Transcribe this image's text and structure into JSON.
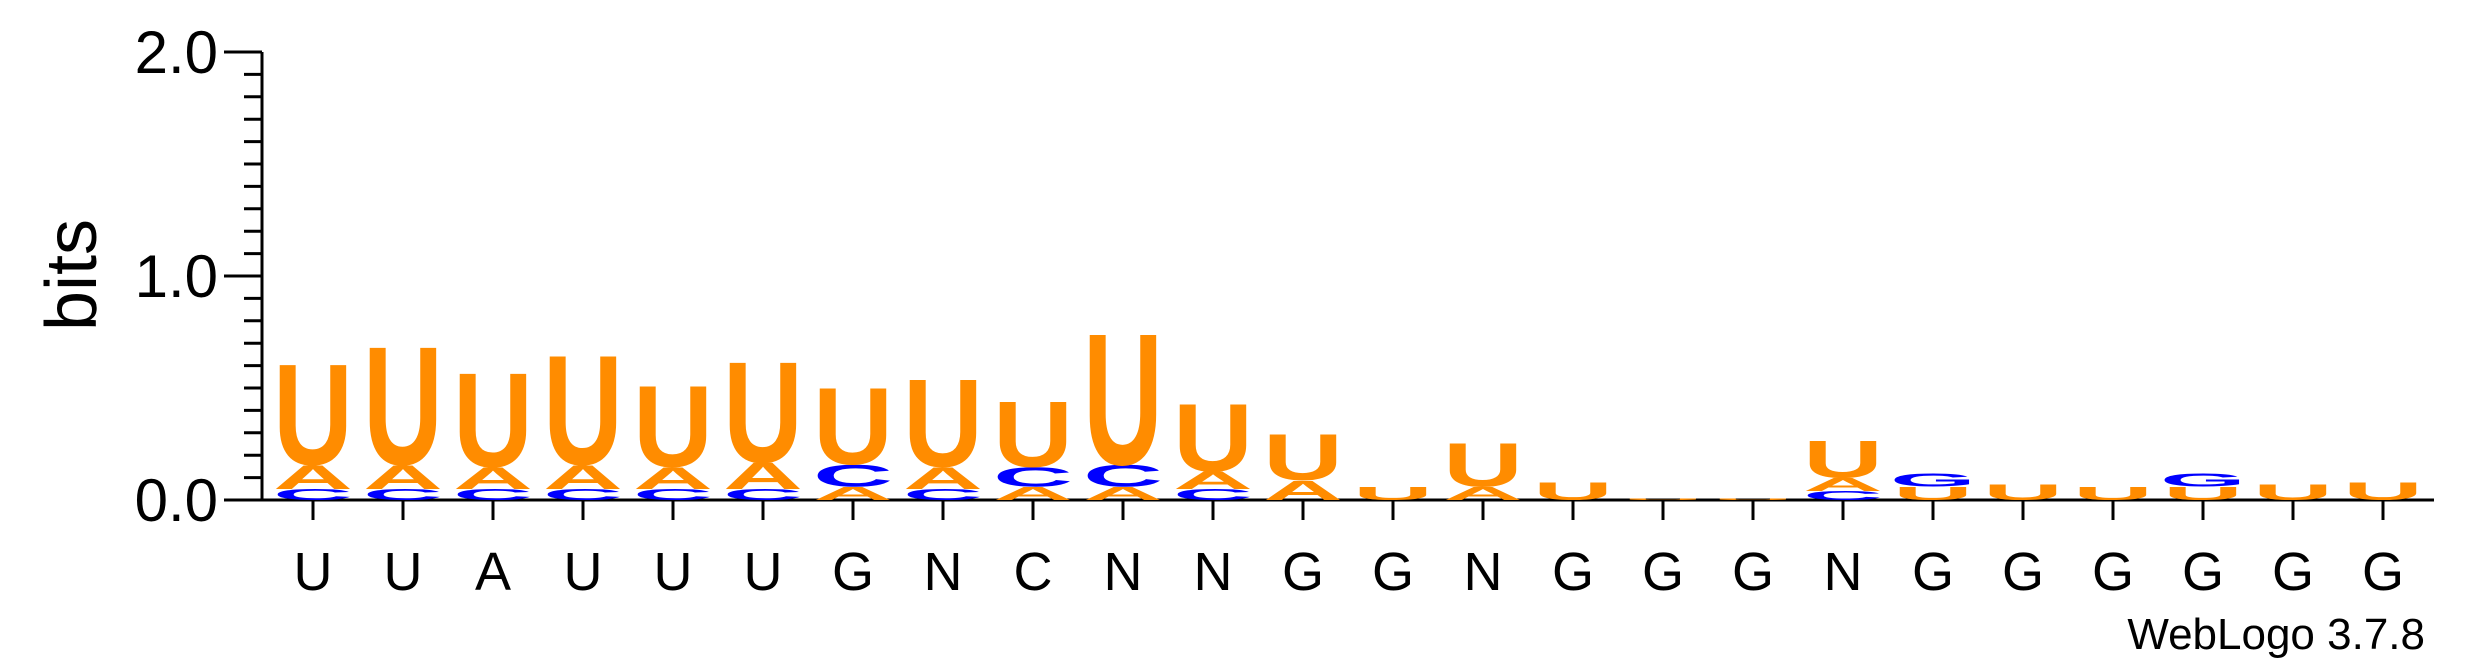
{
  "chart_data": {
    "type": "sequence-logo",
    "ylabel": "bits",
    "ylim": [
      0,
      2.0
    ],
    "yticks": [
      "0.0",
      "1.0",
      "2.0"
    ],
    "positions": [
      "U",
      "U",
      "A",
      "U",
      "U",
      "U",
      "G",
      "N",
      "C",
      "N",
      "N",
      "G",
      "G",
      "N",
      "G",
      "G",
      "G",
      "N",
      "G",
      "G",
      "G",
      "G",
      "G",
      "G"
    ],
    "colors": {
      "U": "#ff8c00",
      "A": "#ff8c00",
      "C": "#0000ff",
      "G": "#0000ff"
    },
    "columns": [
      [
        {
          "letter": "C",
          "bits": 0.05
        },
        {
          "letter": "A",
          "bits": 0.11
        },
        {
          "letter": "U",
          "bits": 0.46
        }
      ],
      [
        {
          "letter": "C",
          "bits": 0.05
        },
        {
          "letter": "A",
          "bits": 0.11
        },
        {
          "letter": "U",
          "bits": 0.54
        }
      ],
      [
        {
          "letter": "C",
          "bits": 0.05
        },
        {
          "letter": "A",
          "bits": 0.1
        },
        {
          "letter": "U",
          "bits": 0.43
        }
      ],
      [
        {
          "letter": "C",
          "bits": 0.05
        },
        {
          "letter": "A",
          "bits": 0.11
        },
        {
          "letter": "U",
          "bits": 0.5
        }
      ],
      [
        {
          "letter": "C",
          "bits": 0.05
        },
        {
          "letter": "A",
          "bits": 0.1
        },
        {
          "letter": "U",
          "bits": 0.37
        }
      ],
      [
        {
          "letter": "C",
          "bits": 0.05
        },
        {
          "letter": "A",
          "bits": 0.12
        },
        {
          "letter": "U",
          "bits": 0.46
        }
      ],
      [
        {
          "letter": "A",
          "bits": 0.06
        },
        {
          "letter": "C",
          "bits": 0.1
        },
        {
          "letter": "U",
          "bits": 0.35
        }
      ],
      [
        {
          "letter": "C",
          "bits": 0.05
        },
        {
          "letter": "A",
          "bits": 0.1
        },
        {
          "letter": "U",
          "bits": 0.4
        }
      ],
      [
        {
          "letter": "A",
          "bits": 0.06
        },
        {
          "letter": "C",
          "bits": 0.09
        },
        {
          "letter": "U",
          "bits": 0.3
        }
      ],
      [
        {
          "letter": "A",
          "bits": 0.06
        },
        {
          "letter": "C",
          "bits": 0.1
        },
        {
          "letter": "U",
          "bits": 0.6
        }
      ],
      [
        {
          "letter": "C",
          "bits": 0.05
        },
        {
          "letter": "A",
          "bits": 0.08
        },
        {
          "letter": "U",
          "bits": 0.31
        }
      ],
      [
        {
          "letter": "A",
          "bits": 0.09
        },
        {
          "letter": "U",
          "bits": 0.21
        }
      ],
      [
        {
          "letter": "U",
          "bits": 0.06
        }
      ],
      [
        {
          "letter": "A",
          "bits": 0.06
        },
        {
          "letter": "U",
          "bits": 0.2
        }
      ],
      [
        {
          "letter": "U",
          "bits": 0.08
        }
      ],
      [
        {
          "letter": "U",
          "bits": 0.005
        }
      ],
      [
        {
          "letter": "U",
          "bits": 0.005
        }
      ],
      [
        {
          "letter": "C",
          "bits": 0.04
        },
        {
          "letter": "A",
          "bits": 0.06
        },
        {
          "letter": "U",
          "bits": 0.17
        }
      ],
      [
        {
          "letter": "U",
          "bits": 0.06
        },
        {
          "letter": "G",
          "bits": 0.06
        }
      ],
      [
        {
          "letter": "U",
          "bits": 0.07
        }
      ],
      [
        {
          "letter": "U",
          "bits": 0.06
        }
      ],
      [
        {
          "letter": "U",
          "bits": 0.06
        },
        {
          "letter": "G",
          "bits": 0.06
        }
      ],
      [
        {
          "letter": "U",
          "bits": 0.07
        }
      ],
      [
        {
          "letter": "U",
          "bits": 0.08
        }
      ]
    ],
    "credit": "WebLogo 3.7.8"
  }
}
